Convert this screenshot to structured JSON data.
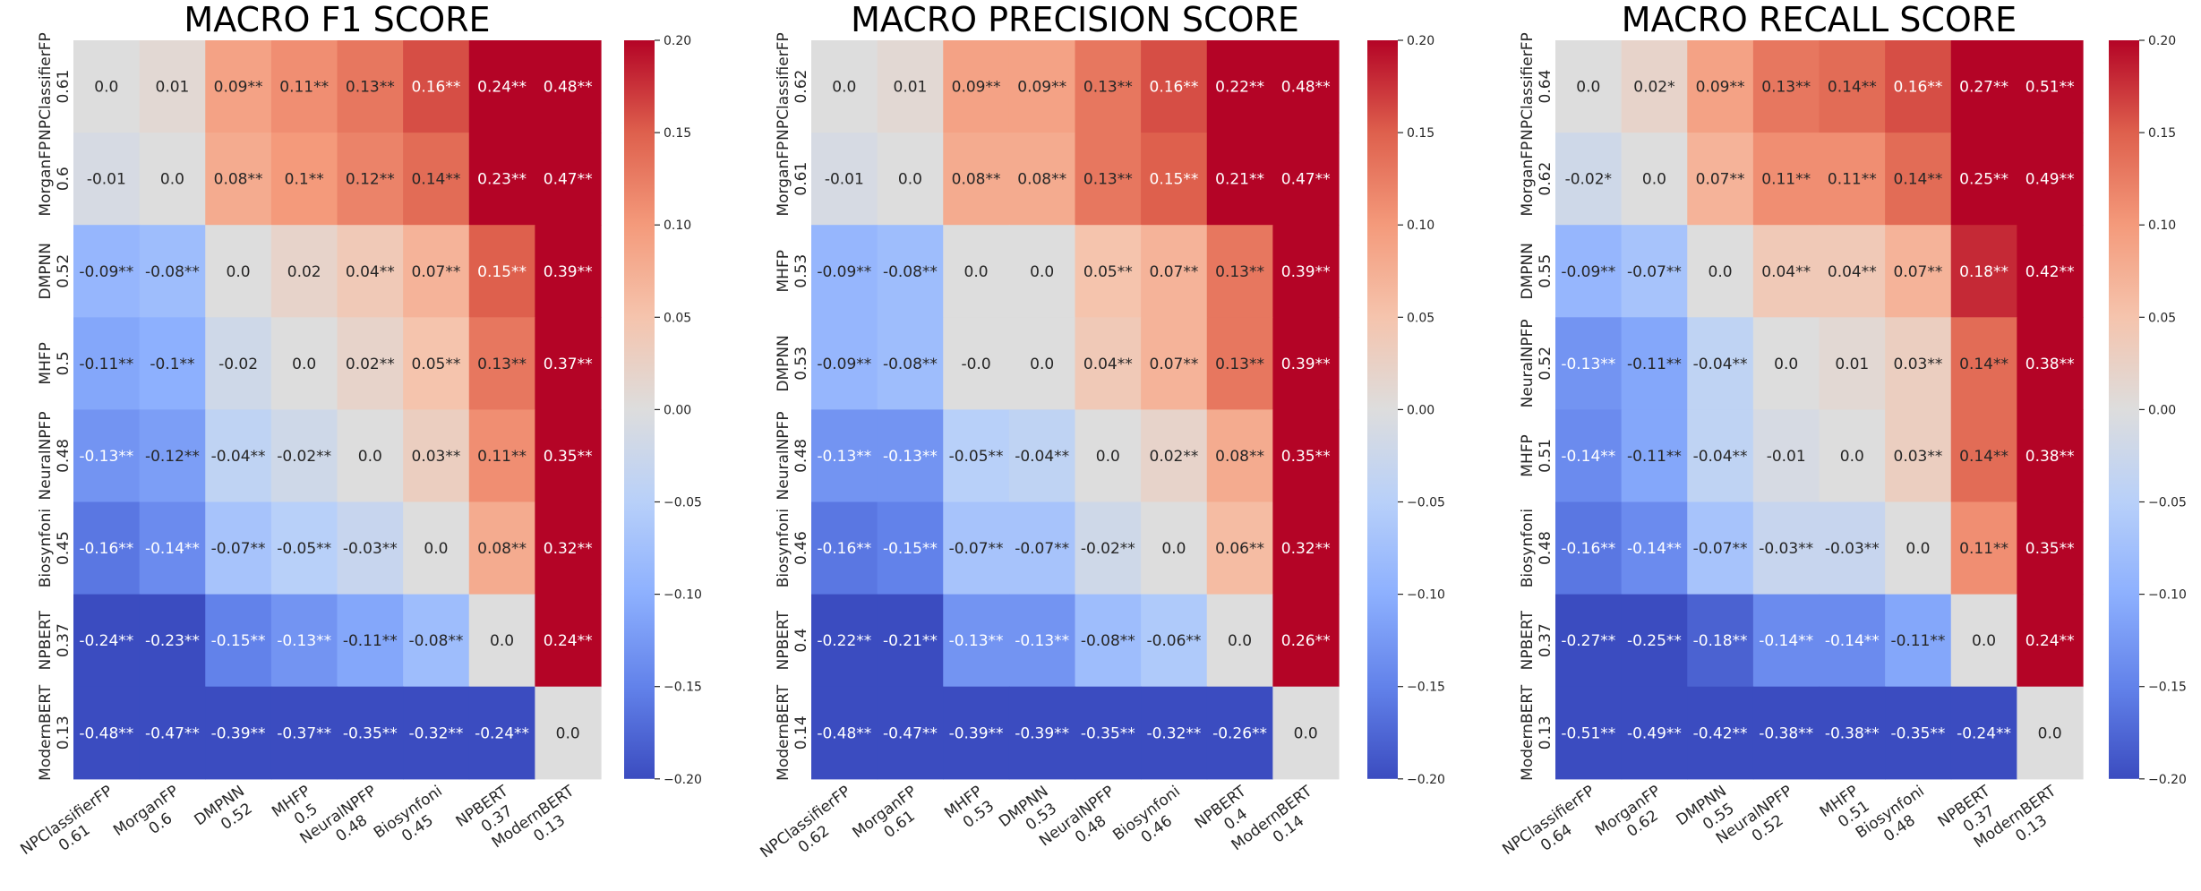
{
  "colorbar": {
    "range": [
      -0.2,
      0.2
    ],
    "ticks": [
      "0.20",
      "0.15",
      "0.10",
      "0.05",
      "0.00",
      "−0.05",
      "−0.10",
      "−0.15",
      "−0.20"
    ],
    "colormap": "coolwarm",
    "colors": {
      "low": "#3b4cc0",
      "mid": "#dddddd",
      "high": "#b40426"
    }
  },
  "chart_data": [
    {
      "type": "heatmap",
      "title": "MACRO F1 SCORE",
      "rows": [
        "NPClassifierFP",
        "MorganFP",
        "DMPNN",
        "MHFP",
        "NeuralNPFP",
        "Biosynfoni",
        "NPBERT",
        "ModernBERT"
      ],
      "row_scores": [
        "0.61",
        "0.6",
        "0.52",
        "0.5",
        "0.48",
        "0.45",
        "0.37",
        "0.13"
      ],
      "labels": [
        [
          "0.0",
          "0.01",
          "0.09**",
          "0.11**",
          "0.13**",
          "0.16**",
          "0.24**",
          "0.48**"
        ],
        [
          "-0.01",
          "0.0",
          "0.08**",
          "0.1**",
          "0.12**",
          "0.14**",
          "0.23**",
          "0.47**"
        ],
        [
          "-0.09**",
          "-0.08**",
          "0.0",
          "0.02",
          "0.04**",
          "0.07**",
          "0.15**",
          "0.39**"
        ],
        [
          "-0.11**",
          "-0.1**",
          "-0.02",
          "0.0",
          "0.02**",
          "0.05**",
          "0.13**",
          "0.37**"
        ],
        [
          "-0.13**",
          "-0.12**",
          "-0.04**",
          "-0.02**",
          "0.0",
          "0.03**",
          "0.11**",
          "0.35**"
        ],
        [
          "-0.16**",
          "-0.14**",
          "-0.07**",
          "-0.05**",
          "-0.03**",
          "0.0",
          "0.08**",
          "0.32**"
        ],
        [
          "-0.24**",
          "-0.23**",
          "-0.15**",
          "-0.13**",
          "-0.11**",
          "-0.08**",
          "0.0",
          "0.24**"
        ],
        [
          "-0.48**",
          "-0.47**",
          "-0.39**",
          "-0.37**",
          "-0.35**",
          "-0.32**",
          "-0.24**",
          "0.0"
        ]
      ]
    },
    {
      "type": "heatmap",
      "title": "MACRO PRECISION SCORE",
      "rows": [
        "NPClassifierFP",
        "MorganFP",
        "MHFP",
        "DMPNN",
        "NeuralNPFP",
        "Biosynfoni",
        "NPBERT",
        "ModernBERT"
      ],
      "row_scores": [
        "0.62",
        "0.61",
        "0.53",
        "0.53",
        "0.48",
        "0.46",
        "0.4",
        "0.14"
      ],
      "labels": [
        [
          "0.0",
          "0.01",
          "0.09**",
          "0.09**",
          "0.13**",
          "0.16**",
          "0.22**",
          "0.48**"
        ],
        [
          "-0.01",
          "0.0",
          "0.08**",
          "0.08**",
          "0.13**",
          "0.15**",
          "0.21**",
          "0.47**"
        ],
        [
          "-0.09**",
          "-0.08**",
          "0.0",
          "0.0",
          "0.05**",
          "0.07**",
          "0.13**",
          "0.39**"
        ],
        [
          "-0.09**",
          "-0.08**",
          "-0.0",
          "0.0",
          "0.04**",
          "0.07**",
          "0.13**",
          "0.39**"
        ],
        [
          "-0.13**",
          "-0.13**",
          "-0.05**",
          "-0.04**",
          "0.0",
          "0.02**",
          "0.08**",
          "0.35**"
        ],
        [
          "-0.16**",
          "-0.15**",
          "-0.07**",
          "-0.07**",
          "-0.02**",
          "0.0",
          "0.06**",
          "0.32**"
        ],
        [
          "-0.22**",
          "-0.21**",
          "-0.13**",
          "-0.13**",
          "-0.08**",
          "-0.06**",
          "0.0",
          "0.26**"
        ],
        [
          "-0.48**",
          "-0.47**",
          "-0.39**",
          "-0.39**",
          "-0.35**",
          "-0.32**",
          "-0.26**",
          "0.0"
        ]
      ]
    },
    {
      "type": "heatmap",
      "title": "MACRO RECALL SCORE",
      "rows": [
        "NPClassifierFP",
        "MorganFP",
        "DMPNN",
        "NeuralNPFP",
        "MHFP",
        "Biosynfoni",
        "NPBERT",
        "ModernBERT"
      ],
      "row_scores": [
        "0.64",
        "0.62",
        "0.55",
        "0.52",
        "0.51",
        "0.48",
        "0.37",
        "0.13"
      ],
      "labels": [
        [
          "0.0",
          "0.02*",
          "0.09**",
          "0.13**",
          "0.14**",
          "0.16**",
          "0.27**",
          "0.51**"
        ],
        [
          "-0.02*",
          "0.0",
          "0.07**",
          "0.11**",
          "0.11**",
          "0.14**",
          "0.25**",
          "0.49**"
        ],
        [
          "-0.09**",
          "-0.07**",
          "0.0",
          "0.04**",
          "0.04**",
          "0.07**",
          "0.18**",
          "0.42**"
        ],
        [
          "-0.13**",
          "-0.11**",
          "-0.04**",
          "0.0",
          "0.01",
          "0.03**",
          "0.14**",
          "0.38**"
        ],
        [
          "-0.14**",
          "-0.11**",
          "-0.04**",
          "-0.01",
          "0.0",
          "0.03**",
          "0.14**",
          "0.38**"
        ],
        [
          "-0.16**",
          "-0.14**",
          "-0.07**",
          "-0.03**",
          "-0.03**",
          "0.0",
          "0.11**",
          "0.35**"
        ],
        [
          "-0.27**",
          "-0.25**",
          "-0.18**",
          "-0.14**",
          "-0.14**",
          "-0.11**",
          "0.0",
          "0.24**"
        ],
        [
          "-0.51**",
          "-0.49**",
          "-0.42**",
          "-0.38**",
          "-0.38**",
          "-0.35**",
          "-0.24**",
          "0.0"
        ]
      ]
    }
  ]
}
